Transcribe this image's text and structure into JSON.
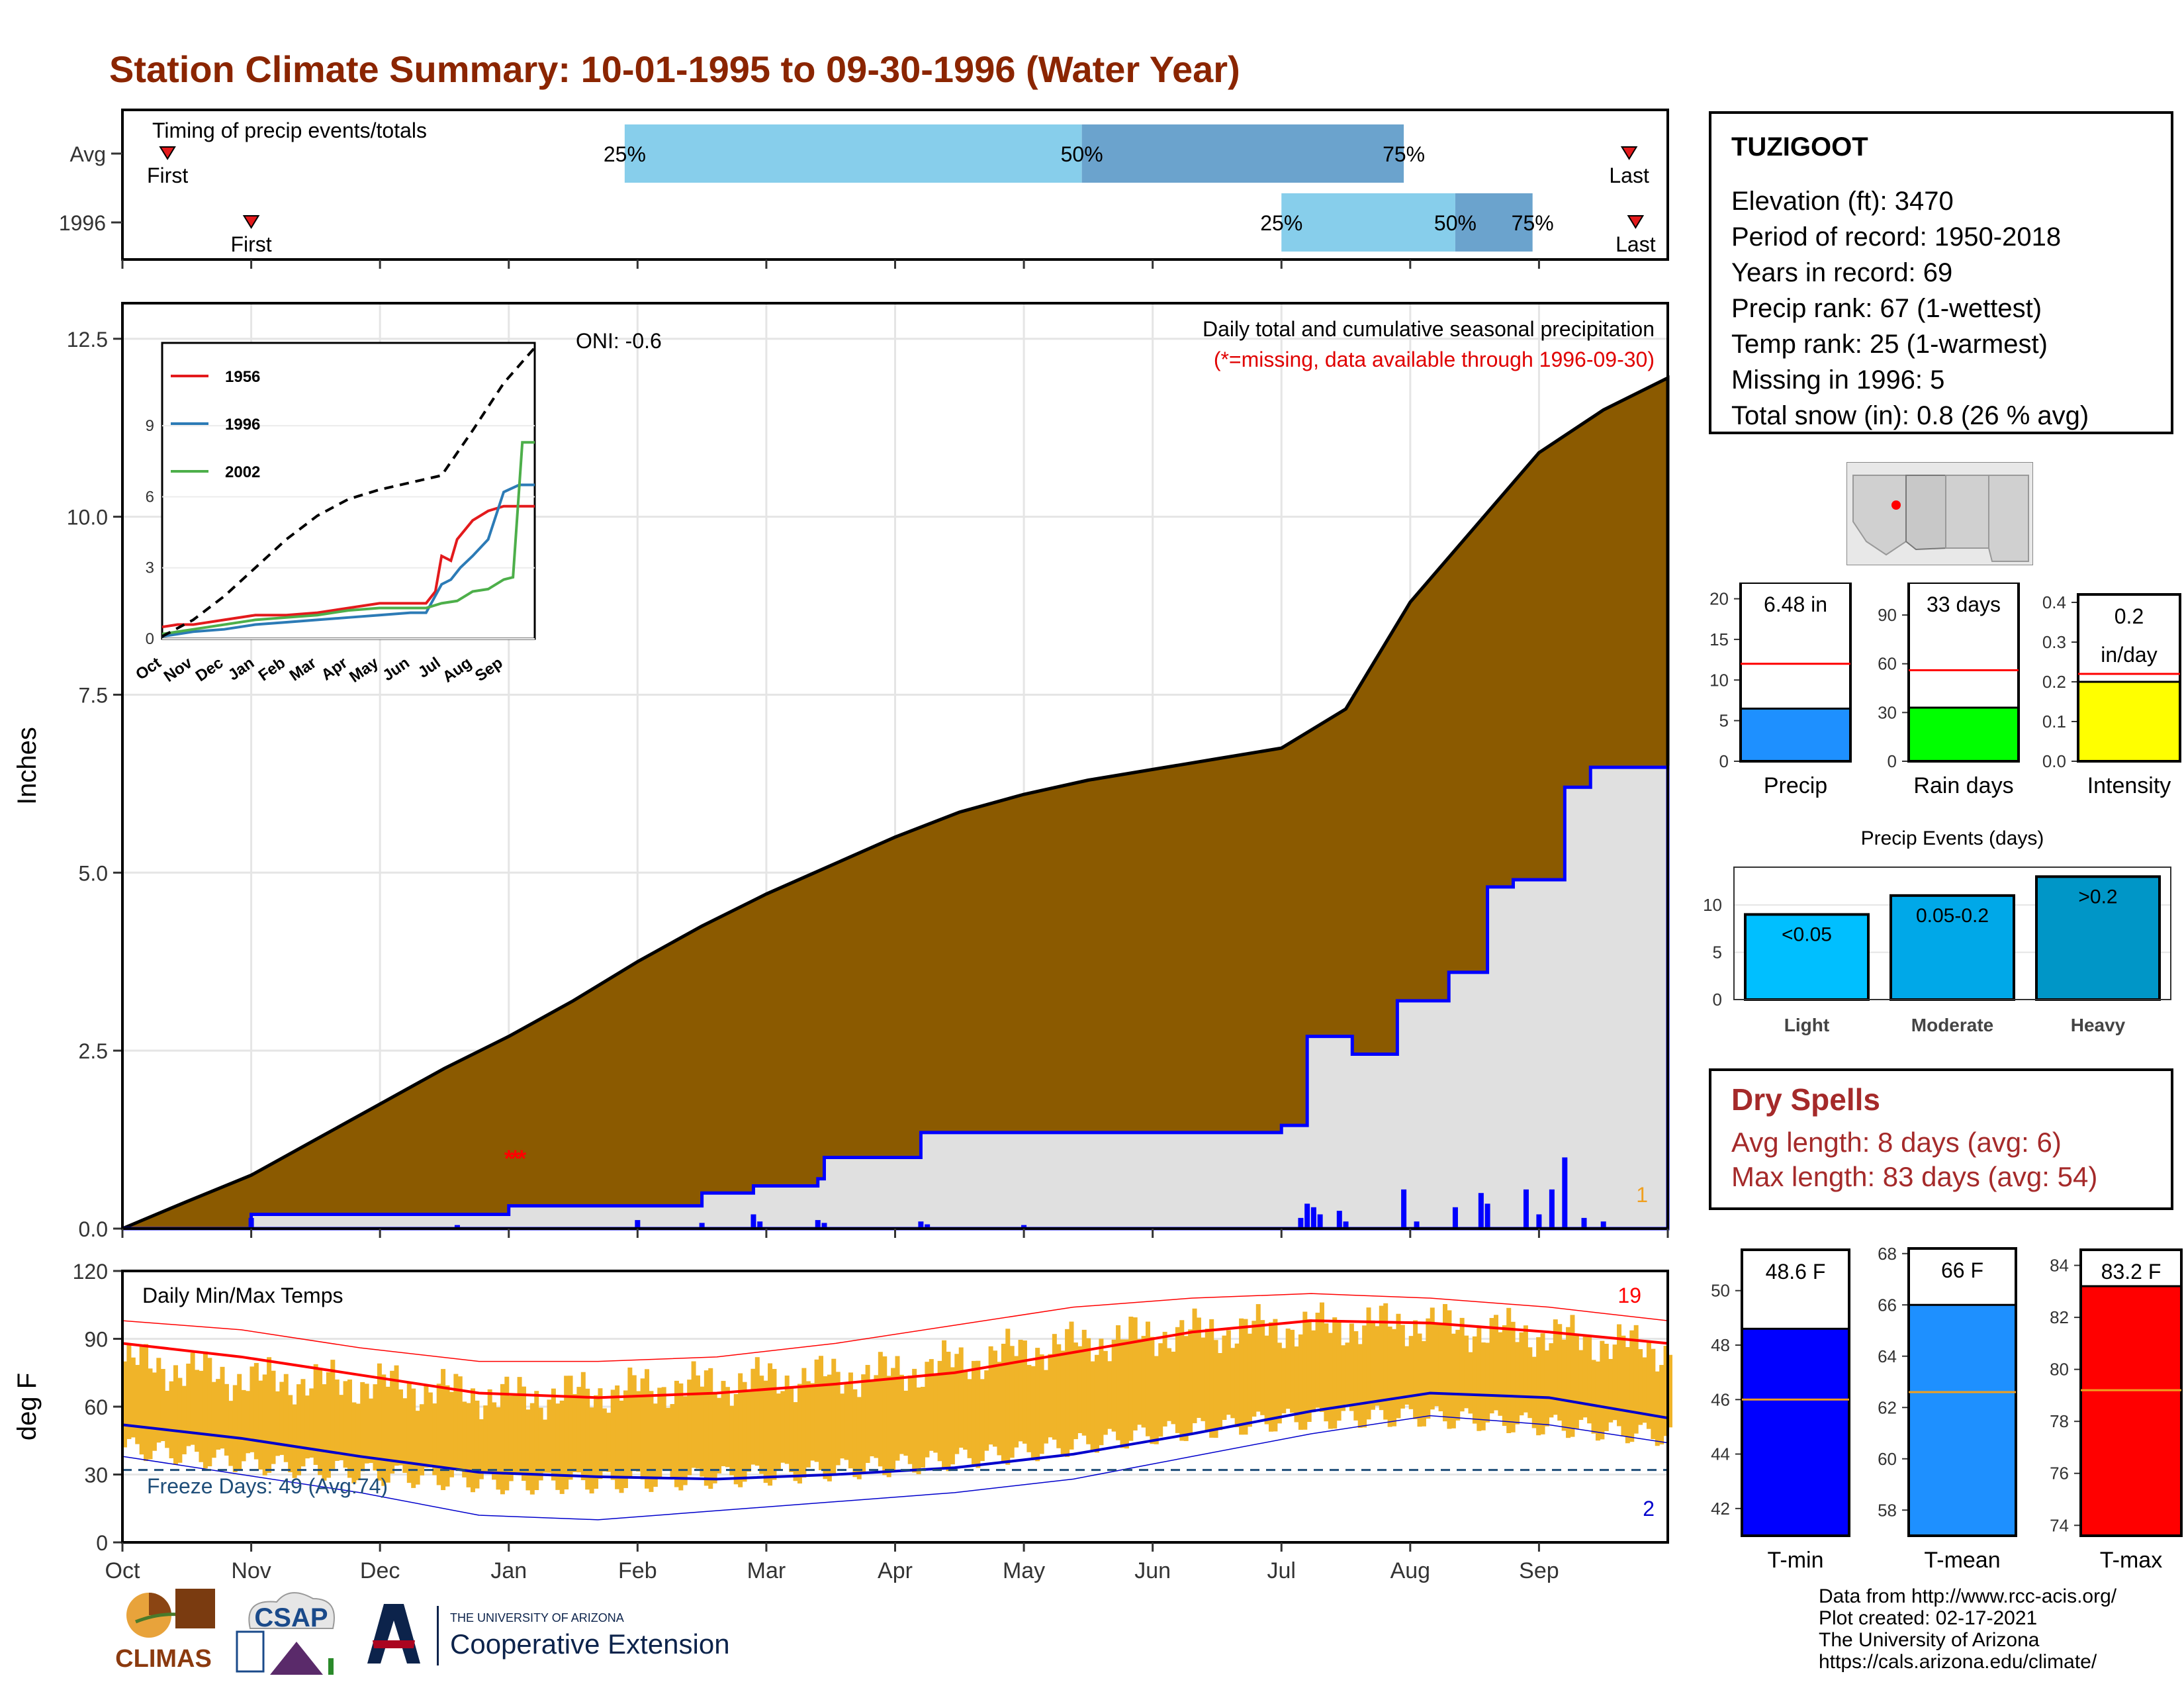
{
  "title": "Station Climate Summary: 10-01-1995 to 09-30-1996 (Water Year)",
  "timing": {
    "label": "Timing of precip events/totals",
    "rows": [
      {
        "name": "Avg",
        "first_month": 0.35,
        "q25": 3.9,
        "q50": 7.45,
        "q75": 9.95,
        "last_month": 11.7
      },
      {
        "name": "1996",
        "first_month": 1.0,
        "q25": 9.0,
        "q50": 10.35,
        "q75": 10.95,
        "last_month": 11.75
      }
    ],
    "first_label": "First",
    "last_label": "Last",
    "q_labels": [
      "25%",
      "50%",
      "75%"
    ],
    "colors": {
      "q1": "#87ceeb",
      "q2": "#6ba3cd",
      "marker": "#e31a1c"
    }
  },
  "chart_data": [
    {
      "type": "area",
      "title": "Daily total and cumulative seasonal precipitation",
      "subtitle": "(*=missing, data available through 1996-09-30)",
      "ylabel": "Inches",
      "ylim": [
        0,
        13
      ],
      "yticks": [
        "0.0",
        "2.5",
        "5.0",
        "7.5",
        "10.0",
        "12.5"
      ],
      "oni": "ONI: -0.6",
      "missing_count": "1",
      "avg_cumulative": {
        "x_month": [
          0,
          0.5,
          1,
          1.5,
          2,
          2.5,
          3,
          3.5,
          4,
          4.5,
          5,
          5.5,
          6,
          6.5,
          7,
          7.5,
          8,
          8.5,
          9,
          9.5,
          10,
          10.5,
          11,
          11.5,
          12
        ],
        "y": [
          0,
          0.38,
          0.75,
          1.25,
          1.75,
          2.25,
          2.7,
          3.2,
          3.75,
          4.25,
          4.7,
          5.1,
          5.5,
          5.85,
          6.1,
          6.3,
          6.45,
          6.6,
          6.75,
          7.3,
          8.8,
          9.85,
          10.9,
          11.5,
          11.95
        ]
      },
      "year_cumulative": {
        "x_month": [
          0,
          0.4,
          1.0,
          2.6,
          3.0,
          4.0,
          4.5,
          4.9,
          5.4,
          5.45,
          6.2,
          7.0,
          8.0,
          9.0,
          9.2,
          9.55,
          9.9,
          10.3,
          10.6,
          10.8,
          11.2,
          11.4,
          12
        ],
        "y": [
          0,
          0,
          0.2,
          0.2,
          0.32,
          0.32,
          0.5,
          0.6,
          0.7,
          1.0,
          1.35,
          1.35,
          1.35,
          1.45,
          2.7,
          2.45,
          3.2,
          3.6,
          4.8,
          4.9,
          6.2,
          6.48,
          6.48
        ]
      },
      "daily_bars": {
        "x_month": [
          1.0,
          2.6,
          4.0,
          4.5,
          4.9,
          4.95,
          5.4,
          5.45,
          6.2,
          6.25,
          7.0,
          9.15,
          9.2,
          9.25,
          9.3,
          9.45,
          9.5,
          9.95,
          10.05,
          10.35,
          10.55,
          10.6,
          10.9,
          11.0,
          11.1,
          11.2,
          11.35,
          11.5
        ],
        "y": [
          0.15,
          0.05,
          0.12,
          0.08,
          0.2,
          0.1,
          0.12,
          0.08,
          0.1,
          0.06,
          0.05,
          0.15,
          0.35,
          0.3,
          0.2,
          0.25,
          0.1,
          0.55,
          0.1,
          0.3,
          0.5,
          0.35,
          0.55,
          0.2,
          0.55,
          1.0,
          0.15,
          0.1
        ]
      },
      "missing_marks": {
        "x_month": [
          3.0,
          3.05,
          3.1
        ],
        "y": [
          1.0,
          1.0,
          1.0
        ]
      },
      "colors": {
        "avg_fill": "#8b5a00",
        "year_fill": "#e0e0e0",
        "year_line": "#0000ff",
        "bar": "#0000ff",
        "missing": "#ff0000"
      }
    },
    {
      "type": "line",
      "title": "",
      "series": [
        {
          "name": "1956",
          "color": "#e31a1c",
          "x_month": [
            0,
            0.5,
            1,
            2,
            3,
            4,
            5,
            6,
            7,
            8,
            8.5,
            8.8,
            9,
            9.3,
            9.5,
            10,
            10.5,
            11,
            11.5,
            12
          ],
          "y": [
            0.5,
            0.6,
            0.6,
            0.8,
            1.0,
            1.0,
            1.1,
            1.3,
            1.5,
            1.5,
            1.5,
            2.0,
            3.5,
            3.3,
            4.2,
            5.0,
            5.4,
            5.6,
            5.6,
            5.6
          ]
        },
        {
          "name": "1996",
          "color": "#2c7bb6",
          "x_month": [
            0,
            0.5,
            1,
            2,
            3,
            4,
            5,
            6,
            7,
            8,
            8.5,
            9,
            9.3,
            9.6,
            10,
            10.5,
            11,
            11.5,
            12
          ],
          "y": [
            0.1,
            0.2,
            0.3,
            0.4,
            0.6,
            0.7,
            0.8,
            0.9,
            1.0,
            1.1,
            1.1,
            2.3,
            2.5,
            3.0,
            3.5,
            4.2,
            6.2,
            6.5,
            6.5
          ]
        },
        {
          "name": "2002",
          "color": "#4daf4a",
          "x_month": [
            0,
            0.5,
            1,
            2,
            3,
            4,
            5,
            6,
            7,
            8,
            8.5,
            9,
            9.5,
            10,
            10.5,
            11,
            11.3,
            11.6,
            12
          ],
          "y": [
            0.2,
            0.3,
            0.4,
            0.6,
            0.8,
            0.9,
            1.0,
            1.2,
            1.3,
            1.3,
            1.3,
            1.5,
            1.6,
            2.0,
            2.1,
            2.5,
            2.6,
            8.3,
            8.3
          ]
        }
      ],
      "avg_dashed": {
        "x_month": [
          0,
          1,
          2,
          3,
          4,
          5,
          6,
          7,
          8,
          9,
          10,
          11,
          12
        ],
        "y": [
          0.1,
          0.8,
          1.8,
          3.0,
          4.2,
          5.2,
          5.9,
          6.3,
          6.6,
          6.9,
          8.8,
          10.8,
          12.3
        ]
      },
      "yticks": [
        "0",
        "3",
        "6",
        "9"
      ],
      "ylim": [
        0,
        12.5
      ],
      "months": [
        "Oct",
        "Nov",
        "Dec",
        "Jan",
        "Feb",
        "Mar",
        "Apr",
        "May",
        "Jun",
        "Jul",
        "Aug",
        "Sep"
      ]
    },
    {
      "type": "bar",
      "title": "Daily Min/Max Temps",
      "ylabel": "deg F",
      "ylim": [
        0,
        120
      ],
      "yticks": [
        "0",
        "30",
        "60",
        "90",
        "120"
      ],
      "hot_count": "19",
      "cold_count": "2",
      "freeze_label": "Freeze Days: 49 (Avg:74)",
      "freeze_line": 32,
      "months": [
        "Oct",
        "Nov",
        "Dec",
        "Jan",
        "Feb",
        "Mar",
        "Apr",
        "May",
        "Jun",
        "Jul",
        "Aug",
        "Sep"
      ],
      "normal_max": [
        88,
        82,
        74,
        66,
        64,
        66,
        70,
        75,
        84,
        93,
        98,
        97,
        93,
        88
      ],
      "normal_min": [
        52,
        46,
        38,
        31,
        29,
        28,
        30,
        33,
        39,
        48,
        58,
        66,
        64,
        55
      ],
      "record_max": [
        98,
        94,
        86,
        80,
        80,
        82,
        88,
        96,
        104,
        108,
        110,
        108,
        104,
        98
      ],
      "record_min": [
        38,
        30,
        22,
        12,
        10,
        14,
        18,
        22,
        28,
        38,
        48,
        56,
        52,
        44
      ],
      "daily_max_by_month": [
        80,
        72,
        70,
        64,
        68,
        72,
        75,
        85,
        92,
        95,
        97,
        92,
        85
      ],
      "daily_min_by_month": [
        50,
        43,
        38,
        34,
        35,
        38,
        42,
        48,
        56,
        62,
        64,
        60,
        55
      ],
      "colors": {
        "bar": "#f0b429",
        "max": "#ff0000",
        "min": "#0000cc",
        "freeze": "#1f4e79",
        "hot": "#ff0000",
        "cold": "#0000cc"
      }
    },
    {
      "type": "bar",
      "title": "Precip",
      "categories": [
        "Precip"
      ],
      "values": [
        6.48
      ],
      "avg": 12,
      "ylim": [
        0,
        22
      ],
      "yticks": [
        "0",
        "5",
        "10",
        "15",
        "20"
      ],
      "label": "6.48 in",
      "color": "#1e90ff"
    },
    {
      "type": "bar",
      "title": "Rain days",
      "categories": [
        "Rain days"
      ],
      "values": [
        33
      ],
      "avg": 56,
      "ylim": [
        0,
        110
      ],
      "yticks": [
        "0",
        "30",
        "60",
        "90"
      ],
      "label": "33 days",
      "color": "#00ff00"
    },
    {
      "type": "bar",
      "title": "Intensity",
      "categories": [
        "Intensity"
      ],
      "values": [
        0.2
      ],
      "avg": 0.22,
      "ylim": [
        0,
        0.42
      ],
      "yticks": [
        "0.0",
        "0.1",
        "0.2",
        "0.3",
        "0.4"
      ],
      "label": "0.2 in/day",
      "label_lines": [
        "0.2",
        "in/day"
      ],
      "color": "#ffff00"
    },
    {
      "type": "bar",
      "title": "Precip Events (days)",
      "categories": [
        "Light",
        "Moderate",
        "Heavy"
      ],
      "values": [
        9,
        11,
        13
      ],
      "bar_labels": [
        "<0.05",
        "0.05-0.2",
        ">0.2"
      ],
      "ylim": [
        0,
        14
      ],
      "yticks": [
        "0",
        "5",
        "10"
      ],
      "colors": [
        "#00bfff",
        "#00a8e8",
        "#0096c7"
      ]
    },
    {
      "type": "bar",
      "title": "T-min",
      "categories": [
        "T-min"
      ],
      "values": [
        48.6
      ],
      "avg": 46,
      "ylim": [
        41,
        51.5
      ],
      "yticks": [
        "42",
        "44",
        "46",
        "48",
        "50"
      ],
      "label": "48.6 F",
      "color": "#0000ff"
    },
    {
      "type": "bar",
      "title": "T-mean",
      "categories": [
        "T-mean"
      ],
      "values": [
        66
      ],
      "avg": 62.6,
      "ylim": [
        57,
        68.2
      ],
      "yticks": [
        "58",
        "60",
        "62",
        "64",
        "66",
        "68"
      ],
      "label": "66 F",
      "color": "#1e90ff"
    },
    {
      "type": "bar",
      "title": "T-max",
      "categories": [
        "T-max"
      ],
      "values": [
        83.2
      ],
      "avg": 79.2,
      "ylim": [
        73.6,
        84.6
      ],
      "yticks": [
        "74",
        "76",
        "78",
        "80",
        "82",
        "84"
      ],
      "label": "83.2 F",
      "color": "#ff0000"
    }
  ],
  "station": {
    "name": "TUZIGOOT",
    "lines": [
      "Elevation (ft): 3470",
      "Period of record: 1950-2018",
      "Years in record: 69",
      "Precip rank: 67 (1-wettest)",
      "Temp rank: 25 (1-warmest)",
      "Missing in 1996: 5",
      "Total snow (in): 0.8 (26 % avg)"
    ]
  },
  "dry_spells": {
    "title": "Dry Spells",
    "avg_length": "Avg length: 8 days (avg: 6)",
    "max_length": "Max length: 83 days (avg: 54)"
  },
  "logos": {
    "climas": "CLIMAS",
    "csap": "CSAP",
    "ua_small": "THE UNIVERSITY OF ARIZONA",
    "ua_big": "Cooperative Extension"
  },
  "credits": [
    "Data from http://www.rcc-acis.org/",
    "Plot created: 02-17-2021",
    "The University of Arizona",
    "https://cals.arizona.edu/climate/"
  ]
}
